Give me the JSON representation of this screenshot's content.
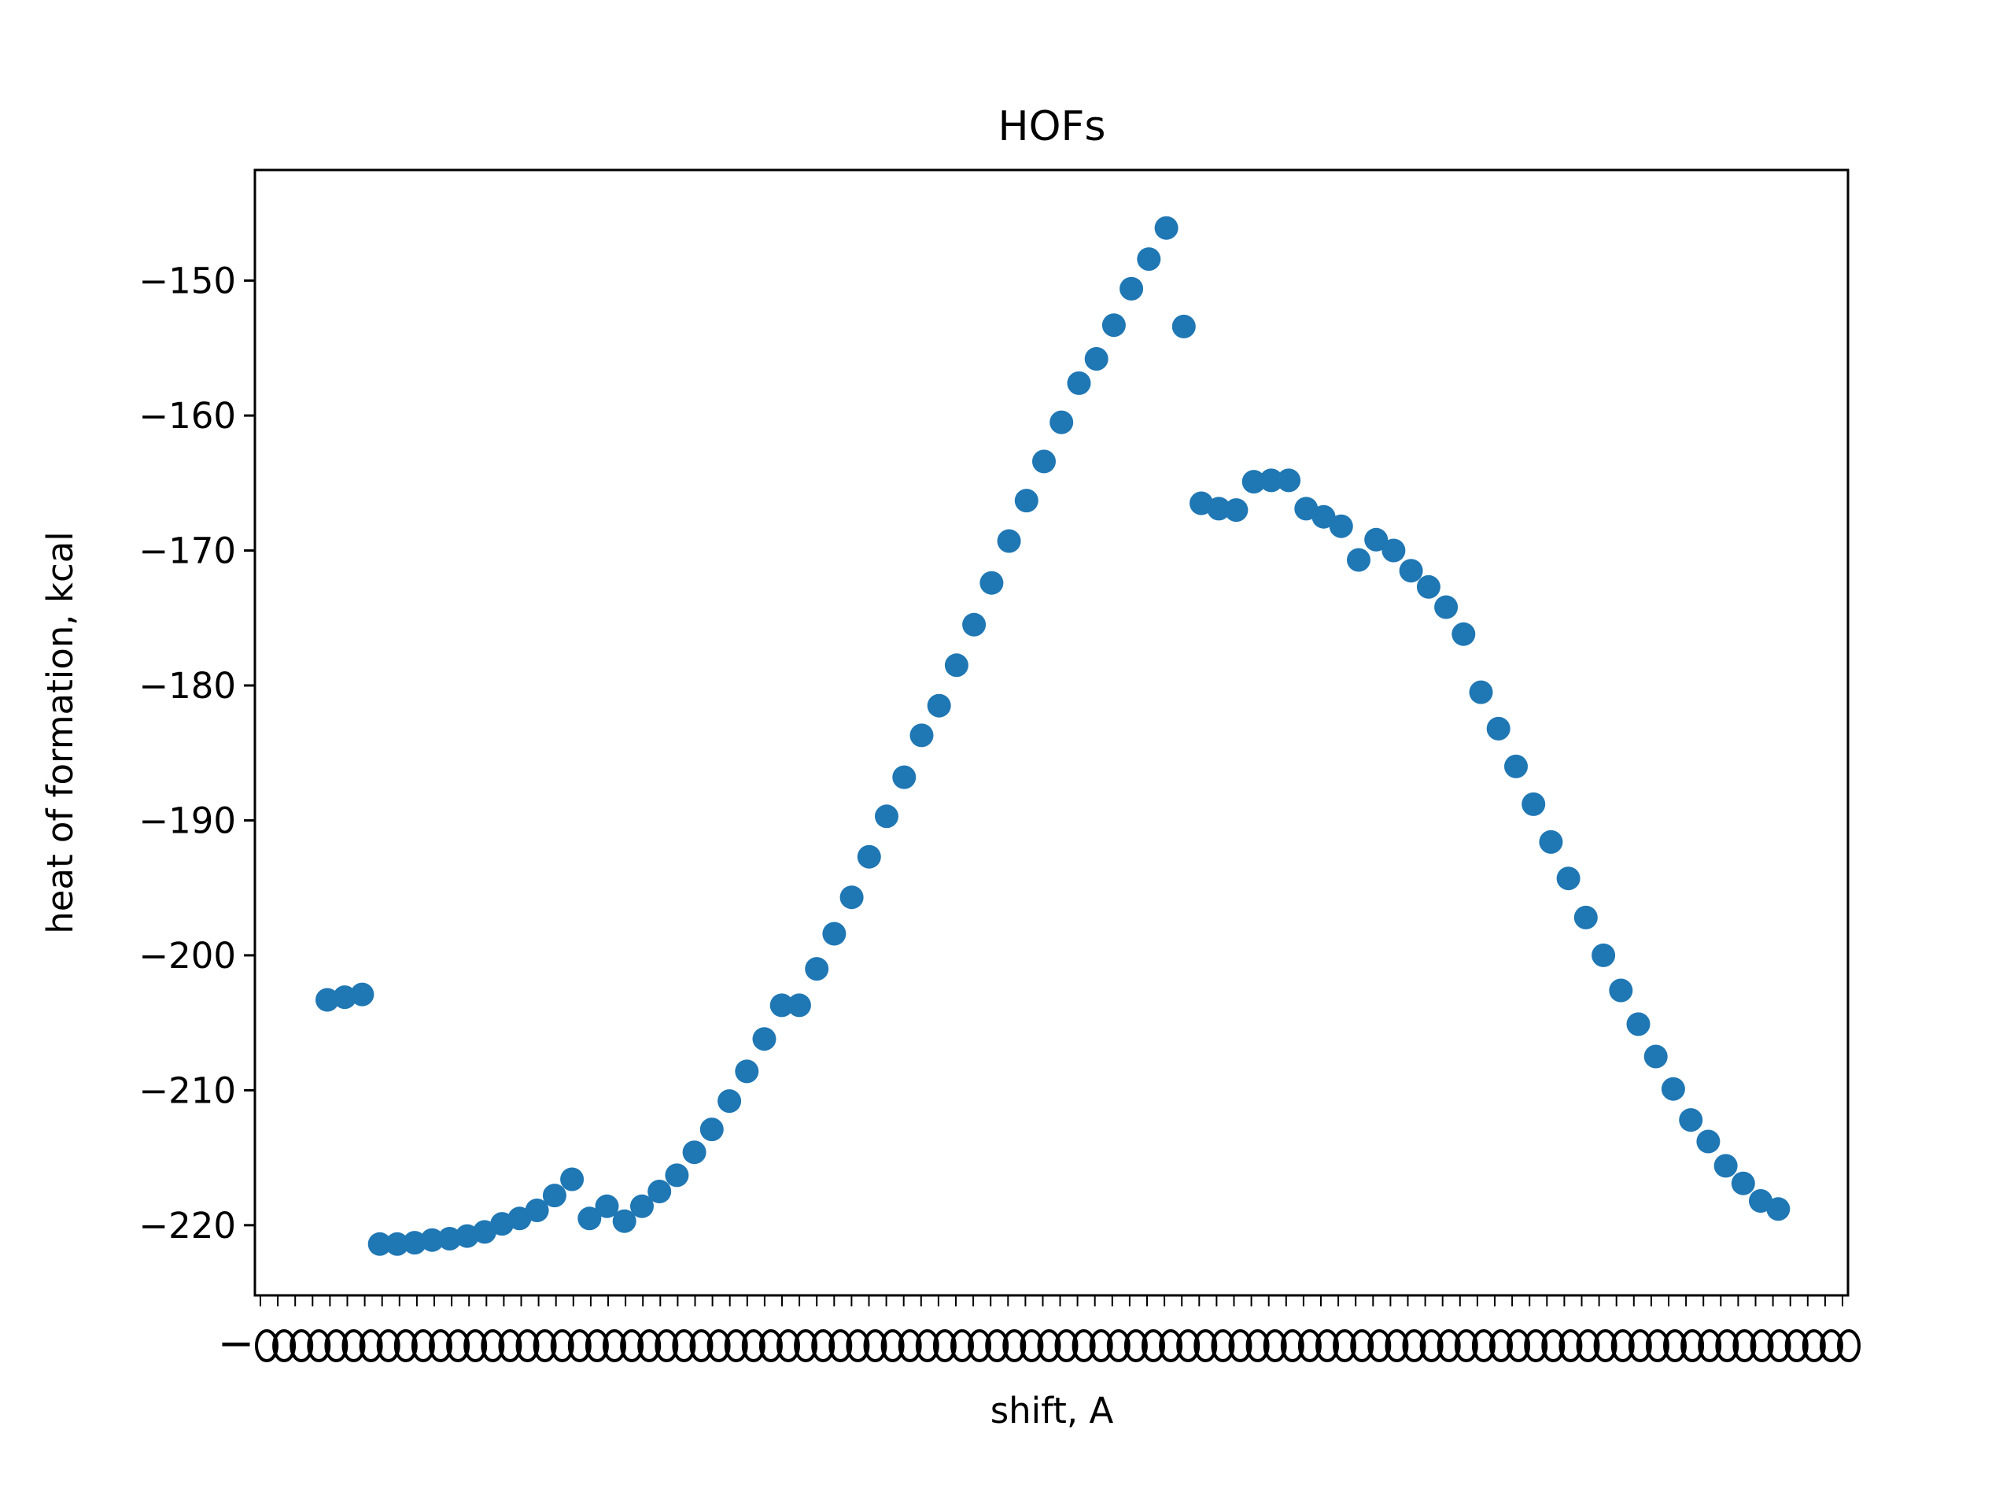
{
  "chart_data": {
    "type": "scatter",
    "title": "HOFs",
    "xlabel": "shift, A",
    "ylabel": "heat of formation, kcal",
    "ylim": [
      -225.2,
      -141.8
    ],
    "yticks": [
      -220,
      -210,
      -200,
      -190,
      -180,
      -170,
      -160,
      -150
    ],
    "ytick_labels": [
      "−220",
      "−210",
      "−200",
      "−190",
      "−180",
      "−170",
      "−160",
      "−150"
    ],
    "x_tick_count": 92,
    "x_tick_labels_note": "overlapping illegible tick labels",
    "x_tick_label_left": "−",
    "grid": false,
    "legend": "none",
    "series": [
      {
        "color": "#1f77b4",
        "y": [
          -203.3,
          -203.1,
          -202.9,
          -221.4,
          -221.4,
          -221.3,
          -221.1,
          -221.0,
          -220.8,
          -220.5,
          -219.9,
          -219.5,
          -218.9,
          -217.8,
          -216.6,
          -219.5,
          -218.6,
          -219.7,
          -218.6,
          -217.5,
          -216.3,
          -214.6,
          -212.9,
          -210.8,
          -208.6,
          -206.2,
          -203.7,
          -203.7,
          -201.0,
          -198.4,
          -195.7,
          -192.7,
          -189.7,
          -186.8,
          -183.7,
          -181.5,
          -178.5,
          -175.5,
          -172.4,
          -169.3,
          -166.3,
          -163.4,
          -160.5,
          -157.6,
          -155.8,
          -153.3,
          -150.6,
          -148.4,
          -146.1,
          -153.4,
          -166.5,
          -166.9,
          -167.0,
          -164.9,
          -164.8,
          -164.8,
          -166.9,
          -167.5,
          -168.2,
          -170.7,
          -169.2,
          -170.0,
          -171.5,
          -172.7,
          -174.2,
          -176.2,
          -180.5,
          -183.2,
          -186.0,
          -188.8,
          -191.6,
          -194.3,
          -197.2,
          -200.0,
          -202.6,
          -205.1,
          -207.5,
          -209.9,
          -212.2,
          -213.8,
          -215.6,
          -216.9,
          -218.2,
          -218.8
        ]
      }
    ]
  }
}
